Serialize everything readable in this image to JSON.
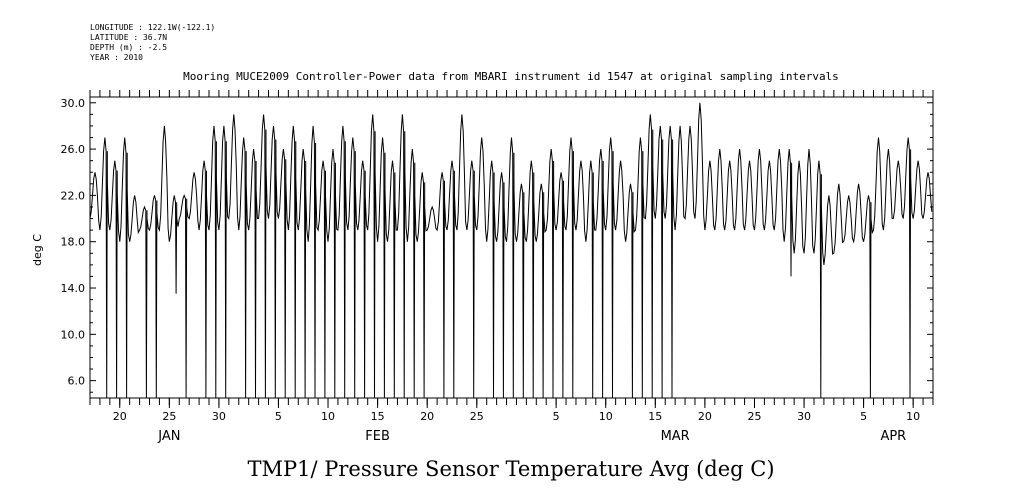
{
  "header": {
    "longitude": "LONGITUDE : 122.1W(-122.1)",
    "latitude": "LATITUDE : 36.7N",
    "depth": "DEPTH (m) : -2.5",
    "year": "YEAR : 2010",
    "title": "Mooring MUCE2009 Controller-Power data from MBARI instrument id 1547 at original sampling intervals"
  },
  "chart_data": {
    "type": "line",
    "title": "TMP1/ Pressure Sensor Temperature Avg (deg C)",
    "xlabel": "",
    "ylabel": "deg C",
    "xlim": [
      "2010-01-17",
      "2010-04-12"
    ],
    "ylim": [
      4.5,
      30.5
    ],
    "grid": false,
    "y_ticks": [
      6.0,
      10.0,
      14.0,
      18.0,
      22.0,
      26.0,
      30.0
    ],
    "y_tick_labels": [
      "6.0",
      "10.0",
      "14.0",
      "18.0",
      "22.0",
      "26.0",
      "30.0"
    ],
    "x_ticks": [
      {
        "date": "2010-01-20",
        "label": "20"
      },
      {
        "date": "2010-01-25",
        "label": "25"
      },
      {
        "date": "2010-01-30",
        "label": "30"
      },
      {
        "date": "2010-02-05",
        "label": "5"
      },
      {
        "date": "2010-02-10",
        "label": "10"
      },
      {
        "date": "2010-02-15",
        "label": "15"
      },
      {
        "date": "2010-02-20",
        "label": "20"
      },
      {
        "date": "2010-02-25",
        "label": "25"
      },
      {
        "date": "2010-03-05",
        "label": "5"
      },
      {
        "date": "2010-03-10",
        "label": "10"
      },
      {
        "date": "2010-03-15",
        "label": "15"
      },
      {
        "date": "2010-03-20",
        "label": "20"
      },
      {
        "date": "2010-03-25",
        "label": "25"
      },
      {
        "date": "2010-03-30",
        "label": "30"
      },
      {
        "date": "2010-04-05",
        "label": "5"
      },
      {
        "date": "2010-04-10",
        "label": "10"
      }
    ],
    "months": [
      {
        "date": "2010-01-25",
        "label": "JAN"
      },
      {
        "date": "2010-02-15",
        "label": "FEB"
      },
      {
        "date": "2010-03-17",
        "label": "MAR"
      },
      {
        "date": "2010-04-08",
        "label": "APR"
      }
    ],
    "series": [
      {
        "name": "TMP1",
        "daily": [
          {
            "date": "2010-01-17",
            "min": 20,
            "max": 24
          },
          {
            "date": "2010-01-18",
            "min": 19,
            "max": 27
          },
          {
            "date": "2010-01-19",
            "min": 19,
            "max": 25
          },
          {
            "date": "2010-01-20",
            "min": 18,
            "max": 27
          },
          {
            "date": "2010-01-21",
            "min": 18,
            "max": 22
          },
          {
            "date": "2010-01-22",
            "min": 19,
            "max": 21
          },
          {
            "date": "2010-01-23",
            "min": 19,
            "max": 22
          },
          {
            "date": "2010-01-24",
            "min": 19,
            "max": 28
          },
          {
            "date": "2010-01-25",
            "min": 18,
            "max": 22
          },
          {
            "date": "2010-01-26",
            "min": 20,
            "max": 22
          },
          {
            "date": "2010-01-27",
            "min": 20,
            "max": 24
          },
          {
            "date": "2010-01-28",
            "min": 19,
            "max": 25
          },
          {
            "date": "2010-01-29",
            "min": 19,
            "max": 28
          },
          {
            "date": "2010-01-30",
            "min": 19,
            "max": 28
          },
          {
            "date": "2010-01-31",
            "min": 20,
            "max": 29
          },
          {
            "date": "2010-02-01",
            "min": 19,
            "max": 27
          },
          {
            "date": "2010-02-02",
            "min": 19,
            "max": 26
          },
          {
            "date": "2010-02-03",
            "min": 20,
            "max": 29
          },
          {
            "date": "2010-02-04",
            "min": 20,
            "max": 28
          },
          {
            "date": "2010-02-05",
            "min": 20,
            "max": 26
          },
          {
            "date": "2010-02-06",
            "min": 19,
            "max": 28
          },
          {
            "date": "2010-02-07",
            "min": 19,
            "max": 26
          },
          {
            "date": "2010-02-08",
            "min": 18,
            "max": 28
          },
          {
            "date": "2010-02-09",
            "min": 19,
            "max": 25
          },
          {
            "date": "2010-02-10",
            "min": 18,
            "max": 26
          },
          {
            "date": "2010-02-11",
            "min": 19,
            "max": 28
          },
          {
            "date": "2010-02-12",
            "min": 19,
            "max": 27
          },
          {
            "date": "2010-02-13",
            "min": 19,
            "max": 25
          },
          {
            "date": "2010-02-14",
            "min": 19,
            "max": 29
          },
          {
            "date": "2010-02-15",
            "min": 18,
            "max": 27
          },
          {
            "date": "2010-02-16",
            "min": 18,
            "max": 25
          },
          {
            "date": "2010-02-17",
            "min": 19,
            "max": 29
          },
          {
            "date": "2010-02-18",
            "min": 18,
            "max": 26
          },
          {
            "date": "2010-02-19",
            "min": 18,
            "max": 24
          },
          {
            "date": "2010-02-20",
            "min": 19,
            "max": 21
          },
          {
            "date": "2010-02-21",
            "min": 19,
            "max": 24
          },
          {
            "date": "2010-02-22",
            "min": 19,
            "max": 25
          },
          {
            "date": "2010-02-23",
            "min": 19,
            "max": 29
          },
          {
            "date": "2010-02-24",
            "min": 19,
            "max": 25
          },
          {
            "date": "2010-02-25",
            "min": 19,
            "max": 27
          },
          {
            "date": "2010-02-26",
            "min": 18,
            "max": 25
          },
          {
            "date": "2010-02-27",
            "min": 18,
            "max": 24
          },
          {
            "date": "2010-02-28",
            "min": 18,
            "max": 27
          },
          {
            "date": "2010-03-01",
            "min": 18,
            "max": 23
          },
          {
            "date": "2010-03-02",
            "min": 18,
            "max": 25
          },
          {
            "date": "2010-03-03",
            "min": 18,
            "max": 23
          },
          {
            "date": "2010-03-04",
            "min": 19,
            "max": 26
          },
          {
            "date": "2010-03-05",
            "min": 19,
            "max": 24
          },
          {
            "date": "2010-03-06",
            "min": 19,
            "max": 27
          },
          {
            "date": "2010-03-07",
            "min": 19,
            "max": 25
          },
          {
            "date": "2010-03-08",
            "min": 18,
            "max": 25
          },
          {
            "date": "2010-03-09",
            "min": 19,
            "max": 26
          },
          {
            "date": "2010-03-10",
            "min": 19,
            "max": 27
          },
          {
            "date": "2010-03-11",
            "min": 19,
            "max": 25
          },
          {
            "date": "2010-03-12",
            "min": 18,
            "max": 23
          },
          {
            "date": "2010-03-13",
            "min": 19,
            "max": 27
          },
          {
            "date": "2010-03-14",
            "min": 20,
            "max": 29
          },
          {
            "date": "2010-03-15",
            "min": 20,
            "max": 28
          },
          {
            "date": "2010-03-16",
            "min": 20,
            "max": 28
          },
          {
            "date": "2010-03-17",
            "min": 19,
            "max": 28
          },
          {
            "date": "2010-03-18",
            "min": 20,
            "max": 28
          },
          {
            "date": "2010-03-19",
            "min": 20,
            "max": 30
          },
          {
            "date": "2010-03-20",
            "min": 19,
            "max": 25
          },
          {
            "date": "2010-03-21",
            "min": 19,
            "max": 26
          },
          {
            "date": "2010-03-22",
            "min": 19,
            "max": 25
          },
          {
            "date": "2010-03-23",
            "min": 19,
            "max": 26
          },
          {
            "date": "2010-03-24",
            "min": 19,
            "max": 25
          },
          {
            "date": "2010-03-25",
            "min": 19,
            "max": 26
          },
          {
            "date": "2010-03-26",
            "min": 19,
            "max": 25
          },
          {
            "date": "2010-03-27",
            "min": 19,
            "max": 26
          },
          {
            "date": "2010-03-28",
            "min": 18,
            "max": 26
          },
          {
            "date": "2010-03-29",
            "min": 17,
            "max": 25
          },
          {
            "date": "2010-03-30",
            "min": 17,
            "max": 26
          },
          {
            "date": "2010-03-31",
            "min": 17,
            "max": 25
          },
          {
            "date": "2010-04-01",
            "min": 16,
            "max": 22
          },
          {
            "date": "2010-04-02",
            "min": 17,
            "max": 23
          },
          {
            "date": "2010-04-03",
            "min": 18,
            "max": 22
          },
          {
            "date": "2010-04-04",
            "min": 18,
            "max": 23
          },
          {
            "date": "2010-04-05",
            "min": 18,
            "max": 22
          },
          {
            "date": "2010-04-06",
            "min": 19,
            "max": 27
          },
          {
            "date": "2010-04-07",
            "min": 19,
            "max": 26
          },
          {
            "date": "2010-04-08",
            "min": 20,
            "max": 25
          },
          {
            "date": "2010-04-09",
            "min": 20,
            "max": 27
          },
          {
            "date": "2010-04-10",
            "min": 20,
            "max": 25
          },
          {
            "date": "2010-04-11",
            "min": 20,
            "max": 24
          }
        ],
        "dropouts": [
          {
            "date": "2010-01-18",
            "value": 4.5
          },
          {
            "date": "2010-01-19",
            "value": 4.5
          },
          {
            "date": "2010-01-20",
            "value": 4.5
          },
          {
            "date": "2010-01-22",
            "value": 4.5
          },
          {
            "date": "2010-01-23",
            "value": 4.5
          },
          {
            "date": "2010-01-25",
            "value": 13.5
          },
          {
            "date": "2010-01-26",
            "value": 4.5
          },
          {
            "date": "2010-01-28",
            "value": 4.5
          },
          {
            "date": "2010-01-29",
            "value": 4.5
          },
          {
            "date": "2010-01-30",
            "value": 4.5
          },
          {
            "date": "2010-02-01",
            "value": 4.5
          },
          {
            "date": "2010-02-02",
            "value": 4.5
          },
          {
            "date": "2010-02-03",
            "value": 4.5
          },
          {
            "date": "2010-02-04",
            "value": 4.5
          },
          {
            "date": "2010-02-05",
            "value": 4.5
          },
          {
            "date": "2010-02-06",
            "value": 4.5
          },
          {
            "date": "2010-02-07",
            "value": 4.5
          },
          {
            "date": "2010-02-08",
            "value": 4.5
          },
          {
            "date": "2010-02-09",
            "value": 4.5
          },
          {
            "date": "2010-02-10",
            "value": 4.5
          },
          {
            "date": "2010-02-11",
            "value": 4.5
          },
          {
            "date": "2010-02-12",
            "value": 4.5
          },
          {
            "date": "2010-02-13",
            "value": 4.5
          },
          {
            "date": "2010-02-14",
            "value": 4.5
          },
          {
            "date": "2010-02-15",
            "value": 4.5
          },
          {
            "date": "2010-02-16",
            "value": 4.5
          },
          {
            "date": "2010-02-17",
            "value": 4.5
          },
          {
            "date": "2010-02-18",
            "value": 4.5
          },
          {
            "date": "2010-02-19",
            "value": 4.5
          },
          {
            "date": "2010-02-21",
            "value": 4.5
          },
          {
            "date": "2010-02-22",
            "value": 4.5
          },
          {
            "date": "2010-02-24",
            "value": 4.5
          },
          {
            "date": "2010-02-26",
            "value": 4.5
          },
          {
            "date": "2010-02-27",
            "value": 4.5
          },
          {
            "date": "2010-02-28",
            "value": 4.5
          },
          {
            "date": "2010-03-01",
            "value": 4.5
          },
          {
            "date": "2010-03-02",
            "value": 4.5
          },
          {
            "date": "2010-03-03",
            "value": 4.5
          },
          {
            "date": "2010-03-04",
            "value": 4.5
          },
          {
            "date": "2010-03-05",
            "value": 4.5
          },
          {
            "date": "2010-03-06",
            "value": 4.5
          },
          {
            "date": "2010-03-08",
            "value": 4.5
          },
          {
            "date": "2010-03-09",
            "value": 4.5
          },
          {
            "date": "2010-03-10",
            "value": 4.5
          },
          {
            "date": "2010-03-12",
            "value": 4.5
          },
          {
            "date": "2010-03-13",
            "value": 4.5
          },
          {
            "date": "2010-03-14",
            "value": 4.5
          },
          {
            "date": "2010-03-15",
            "value": 4.5
          },
          {
            "date": "2010-03-16",
            "value": 4.5
          },
          {
            "date": "2010-03-28",
            "value": 15.0
          },
          {
            "date": "2010-03-31",
            "value": 4.5
          },
          {
            "date": "2010-04-05",
            "value": 4.5
          },
          {
            "date": "2010-04-09",
            "value": 4.5
          }
        ]
      }
    ]
  }
}
